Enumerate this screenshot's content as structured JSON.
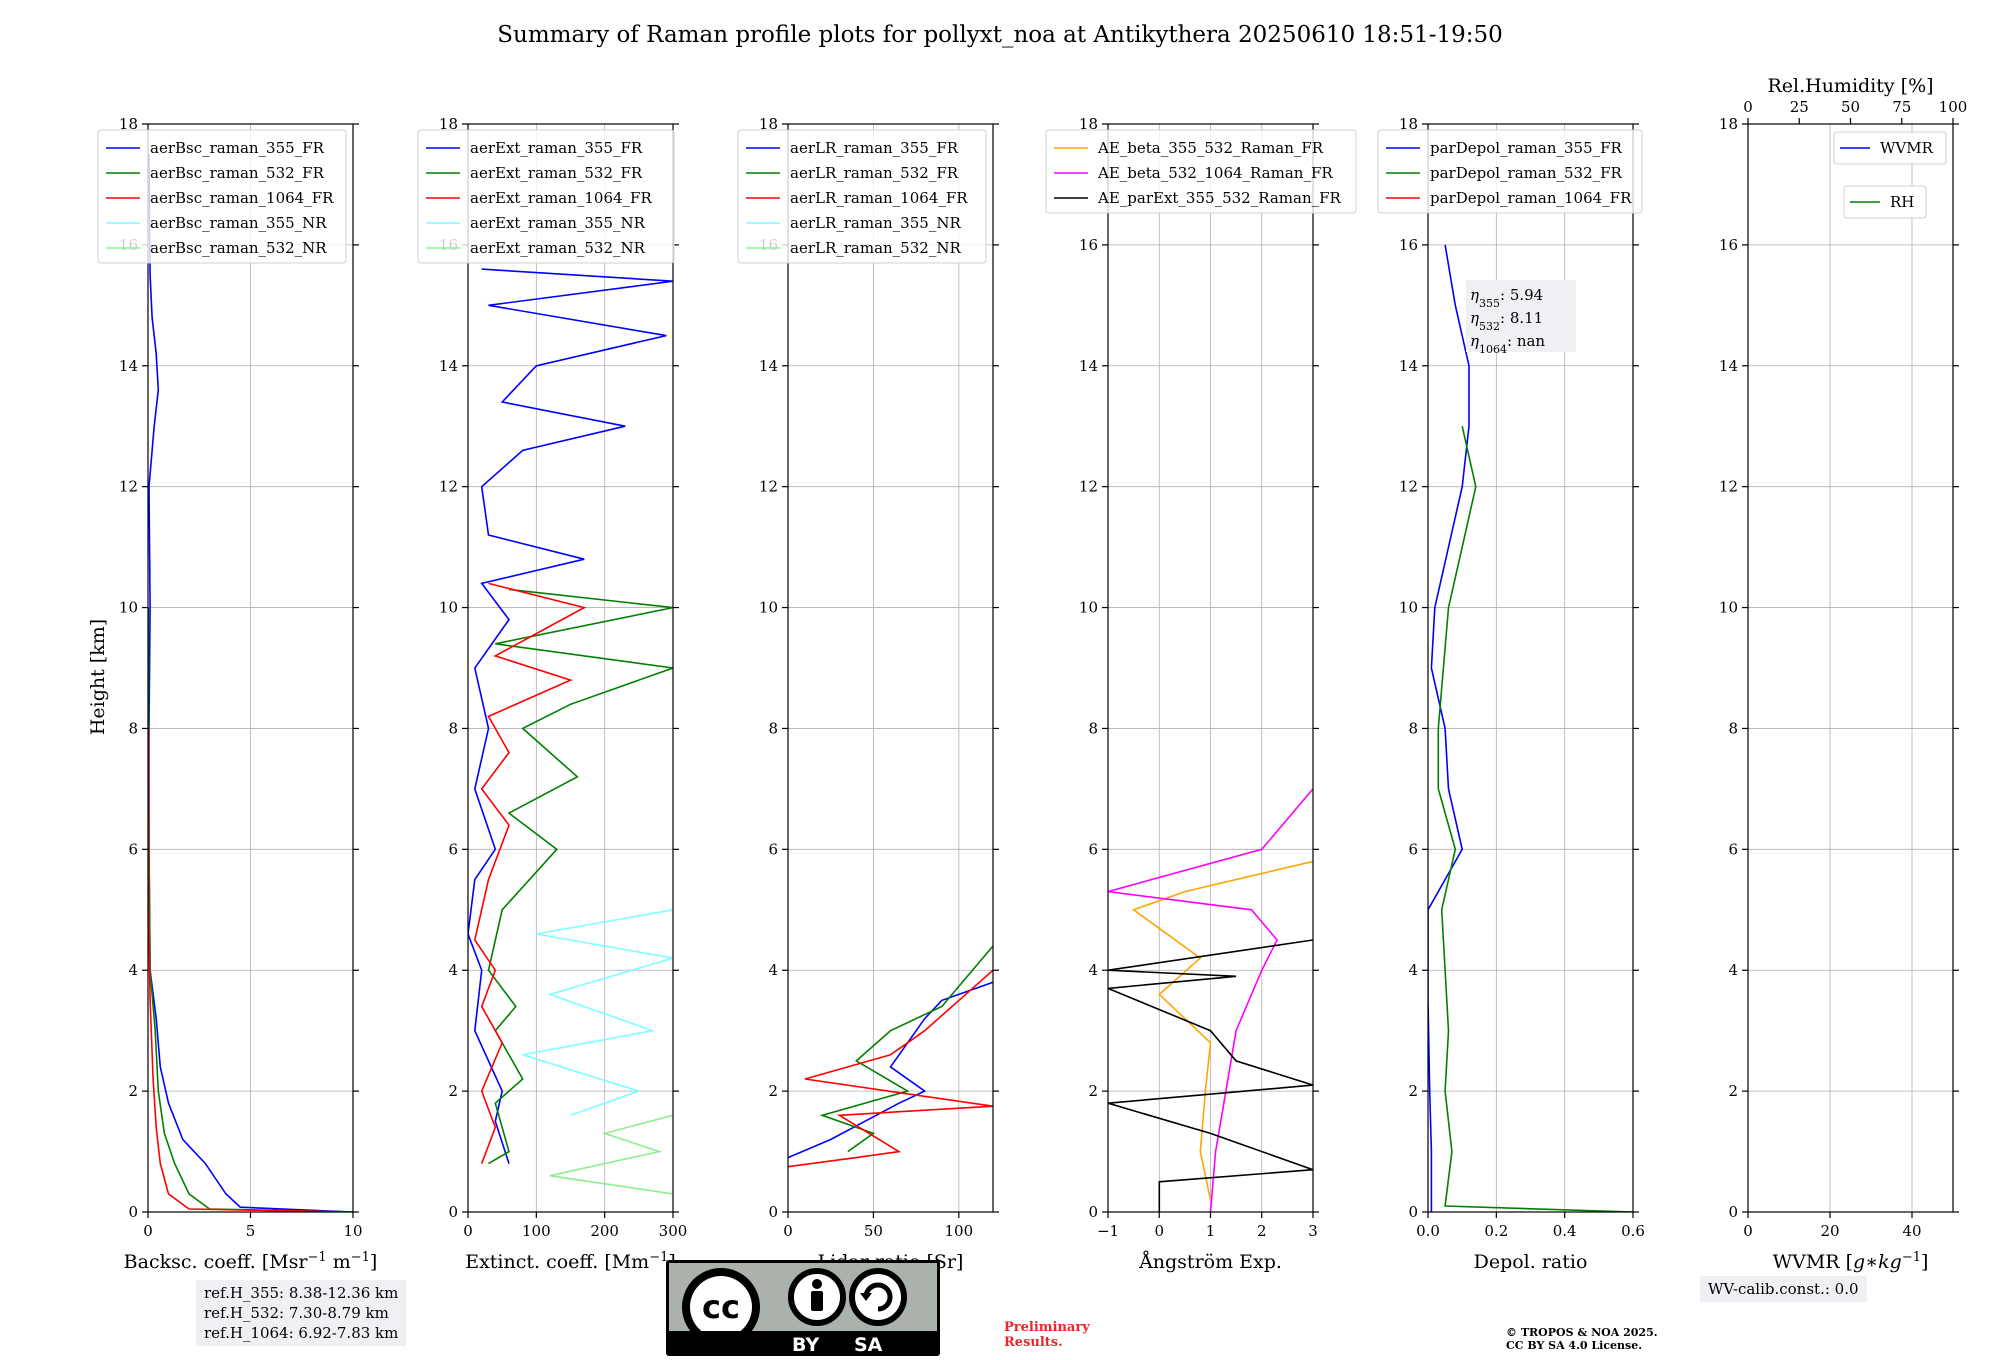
{
  "title": "Summary of Raman profile plots for pollyxt_noa at Antikythera 20250610 18:51-19:50",
  "ref_heights": [
    "ref.H_355: 8.38-12.36 km",
    "ref.H_532: 7.30-8.79 km",
    "ref.H_1064: 6.92-7.83 km"
  ],
  "wv_calib": "WV-calib.const.: 0.0",
  "preliminary": [
    "Preliminary",
    "Results."
  ],
  "copyright": [
    "© TROPOS & NOA 2025.",
    "CC BY SA 4.0 License."
  ],
  "license_badge": {
    "left": "BY",
    "right": "SA"
  },
  "colors": {
    "blue": "#0000ff",
    "green": "#008000",
    "red": "#ff0000",
    "cyan": "#7fffff",
    "lightgreen": "#90ee90",
    "orange": "#ffa500",
    "magenta": "#ff00ff",
    "black": "#000000"
  },
  "chart_data": [
    {
      "type": "line",
      "xlabel": "Backsc. coeff. [Msr$^{-1}$ m$^{-1}$]",
      "xlabel_text": [
        "Backsc. coeff. [Msr",
        "−1",
        " m",
        "−1",
        "]"
      ],
      "ylabel": "Height [km]",
      "xlim": [
        0,
        10
      ],
      "ylim": [
        0,
        18
      ],
      "xticks": [
        0,
        5,
        10
      ],
      "yticks": [
        0,
        2,
        4,
        6,
        8,
        10,
        12,
        14,
        16,
        18
      ],
      "grid": true,
      "legend_placement": "top-left",
      "series": [
        {
          "name": "aerBsc_raman_355_FR",
          "color": "blue",
          "points": [
            [
              10,
              0
            ],
            [
              4.5,
              0.08
            ],
            [
              3.8,
              0.3
            ],
            [
              2.8,
              0.8
            ],
            [
              1.7,
              1.2
            ],
            [
              1,
              1.8
            ],
            [
              0.6,
              2.4
            ],
            [
              0.4,
              3.2
            ],
            [
              0.1,
              4
            ],
            [
              0.05,
              6
            ],
            [
              0.05,
              8
            ],
            [
              0.1,
              10
            ],
            [
              0.05,
              12
            ],
            [
              0.3,
              13
            ],
            [
              0.5,
              13.6
            ],
            [
              0.4,
              14.2
            ],
            [
              0.2,
              14.8
            ],
            [
              0.1,
              15.5
            ],
            [
              0.05,
              17.5
            ]
          ]
        },
        {
          "name": "aerBsc_raman_532_FR",
          "color": "green",
          "points": [
            [
              10,
              0
            ],
            [
              3,
              0.05
            ],
            [
              2,
              0.3
            ],
            [
              1.3,
              0.8
            ],
            [
              0.8,
              1.3
            ],
            [
              0.5,
              2
            ],
            [
              0.35,
              3
            ],
            [
              0.1,
              4
            ],
            [
              0.05,
              6
            ],
            [
              0.03,
              8
            ],
            [
              0.02,
              10
            ]
          ]
        },
        {
          "name": "aerBsc_raman_1064_FR",
          "color": "red",
          "points": [
            [
              10,
              0
            ],
            [
              2,
              0.05
            ],
            [
              1,
              0.3
            ],
            [
              0.6,
              0.8
            ],
            [
              0.4,
              1.4
            ],
            [
              0.25,
              2.2
            ],
            [
              0.1,
              3.5
            ],
            [
              0.03,
              5
            ],
            [
              0.02,
              8
            ]
          ]
        },
        {
          "name": "aerBsc_raman_355_NR",
          "color": "cyan",
          "points": []
        },
        {
          "name": "aerBsc_raman_532_NR",
          "color": "lightgreen",
          "points": []
        }
      ]
    },
    {
      "type": "line",
      "xlabel": "Extinct. coeff. [Mm$^{-1}$]",
      "xlabel_text": [
        "Extinct. coeff. [Mm",
        "−1",
        "]"
      ],
      "xlim": [
        0,
        300
      ],
      "ylim": [
        0,
        18
      ],
      "xticks": [
        0,
        100,
        200,
        300
      ],
      "yticks": [
        0,
        2,
        4,
        6,
        8,
        10,
        12,
        14,
        16,
        18
      ],
      "grid": true,
      "legend_placement": "top-left",
      "series": [
        {
          "name": "aerExt_raman_355_FR",
          "color": "blue",
          "points": [
            [
              60,
              0.8
            ],
            [
              40,
              1.5
            ],
            [
              50,
              2
            ],
            [
              10,
              3
            ],
            [
              20,
              4
            ],
            [
              0,
              4.6
            ],
            [
              10,
              5.5
            ],
            [
              40,
              6
            ],
            [
              10,
              7
            ],
            [
              30,
              8
            ],
            [
              10,
              9
            ],
            [
              60,
              9.8
            ],
            [
              20,
              10.4
            ],
            [
              170,
              10.8
            ],
            [
              30,
              11.2
            ],
            [
              20,
              12
            ],
            [
              80,
              12.6
            ],
            [
              230,
              13
            ],
            [
              50,
              13.4
            ],
            [
              100,
              14
            ],
            [
              290,
              14.5
            ],
            [
              30,
              15
            ],
            [
              300,
              15.4
            ],
            [
              20,
              15.6
            ]
          ]
        },
        {
          "name": "aerExt_raman_532_FR",
          "color": "green",
          "points": [
            [
              30,
              0.8
            ],
            [
              60,
              1
            ],
            [
              40,
              1.8
            ],
            [
              80,
              2.2
            ],
            [
              40,
              3
            ],
            [
              70,
              3.4
            ],
            [
              30,
              4
            ],
            [
              50,
              5
            ],
            [
              130,
              6
            ],
            [
              60,
              6.6
            ],
            [
              160,
              7.2
            ],
            [
              80,
              8
            ],
            [
              150,
              8.4
            ],
            [
              300,
              9
            ],
            [
              40,
              9.4
            ],
            [
              300,
              10
            ],
            [
              60,
              10.3
            ]
          ]
        },
        {
          "name": "aerExt_raman_1064_FR",
          "color": "red",
          "points": [
            [
              20,
              0.8
            ],
            [
              40,
              1.4
            ],
            [
              20,
              2
            ],
            [
              50,
              2.8
            ],
            [
              20,
              3.4
            ],
            [
              40,
              4
            ],
            [
              10,
              4.5
            ],
            [
              30,
              5.5
            ],
            [
              60,
              6.4
            ],
            [
              20,
              7
            ],
            [
              60,
              7.6
            ],
            [
              30,
              8.2
            ],
            [
              150,
              8.8
            ],
            [
              40,
              9.2
            ],
            [
              170,
              10
            ],
            [
              30,
              10.4
            ]
          ]
        },
        {
          "name": "aerExt_raman_355_NR",
          "color": "cyan",
          "points": [
            [
              150,
              1.6
            ],
            [
              250,
              2
            ],
            [
              80,
              2.6
            ],
            [
              270,
              3
            ],
            [
              120,
              3.6
            ],
            [
              300,
              4.2
            ],
            [
              100,
              4.6
            ],
            [
              300,
              5
            ]
          ]
        },
        {
          "name": "aerExt_raman_532_NR",
          "color": "lightgreen",
          "points": [
            [
              300,
              0.3
            ],
            [
              120,
              0.6
            ],
            [
              280,
              1
            ],
            [
              200,
              1.3
            ],
            [
              300,
              1.6
            ]
          ]
        }
      ]
    },
    {
      "type": "line",
      "xlabel": "Lidar ratio [Sr]",
      "xlim": [
        0,
        120
      ],
      "ylim": [
        0,
        18
      ],
      "xticks": [
        0,
        50,
        100
      ],
      "yticks": [
        0,
        2,
        4,
        6,
        8,
        10,
        12,
        14,
        16,
        18
      ],
      "grid": true,
      "legend_placement": "top-left",
      "series": [
        {
          "name": "aerLR_raman_355_FR",
          "color": "blue",
          "points": [
            [
              0,
              0.9
            ],
            [
              25,
              1.2
            ],
            [
              45,
              1.5
            ],
            [
              65,
              1.8
            ],
            [
              80,
              2
            ],
            [
              60,
              2.4
            ],
            [
              70,
              2.8
            ],
            [
              80,
              3.2
            ],
            [
              90,
              3.5
            ],
            [
              120,
              3.8
            ]
          ]
        },
        {
          "name": "aerLR_raman_532_FR",
          "color": "green",
          "points": [
            [
              35,
              1
            ],
            [
              50,
              1.3
            ],
            [
              20,
              1.6
            ],
            [
              70,
              2
            ],
            [
              40,
              2.5
            ],
            [
              60,
              3
            ],
            [
              90,
              3.4
            ],
            [
              120,
              4.4
            ]
          ]
        },
        {
          "name": "aerLR_raman_1064_FR",
          "color": "red",
          "points": [
            [
              0,
              0.75
            ],
            [
              40,
              0.9
            ],
            [
              65,
              1
            ],
            [
              30,
              1.6
            ],
            [
              120,
              1.75
            ],
            [
              10,
              2.2
            ],
            [
              60,
              2.6
            ],
            [
              80,
              3
            ],
            [
              120,
              4
            ]
          ]
        },
        {
          "name": "aerLR_raman_355_NR",
          "color": "cyan",
          "points": []
        },
        {
          "name": "aerLR_raman_532_NR",
          "color": "lightgreen",
          "points": []
        }
      ]
    },
    {
      "type": "line",
      "xlabel": "Ångström Exp.",
      "xlim": [
        -1,
        3
      ],
      "ylim": [
        0,
        18
      ],
      "xticks": [
        -1,
        0,
        1,
        2,
        3
      ],
      "yticks": [
        0,
        2,
        4,
        6,
        8,
        10,
        12,
        14,
        16,
        18
      ],
      "grid": true,
      "legend_placement": "top-left",
      "series": [
        {
          "name": "AE_beta_355_532_Raman_FR",
          "color": "orange",
          "points": [
            [
              1,
              0.2
            ],
            [
              0.8,
              1
            ],
            [
              0.9,
              2
            ],
            [
              1,
              2.8
            ],
            [
              0.5,
              3.2
            ],
            [
              0,
              3.6
            ],
            [
              0.8,
              4.2
            ],
            [
              -0.5,
              5
            ],
            [
              0.5,
              5.3
            ],
            [
              3,
              5.8
            ]
          ]
        },
        {
          "name": "AE_beta_532_1064_Raman_FR",
          "color": "magenta",
          "points": [
            [
              1,
              0
            ],
            [
              1.1,
              1
            ],
            [
              1.3,
              2
            ],
            [
              1.5,
              3
            ],
            [
              2,
              4
            ],
            [
              2.3,
              4.5
            ],
            [
              1.8,
              5
            ],
            [
              -1,
              5.3
            ],
            [
              2,
              6
            ],
            [
              3,
              7
            ]
          ]
        },
        {
          "name": "AE_parExt_355_532_Raman_FR",
          "color": "black",
          "points": [
            [
              0,
              0
            ],
            [
              0,
              0.5
            ],
            [
              3,
              0.7
            ],
            [
              1,
              1.3
            ],
            [
              -1,
              1.8
            ],
            [
              3,
              2.1
            ],
            [
              1.5,
              2.5
            ],
            [
              1,
              3
            ],
            [
              -1,
              3.7
            ],
            [
              1.5,
              3.9
            ],
            [
              -1,
              4
            ],
            [
              3,
              4.5
            ]
          ]
        }
      ]
    },
    {
      "type": "line",
      "xlabel": "Depol. ratio",
      "xlim": [
        0,
        0.6
      ],
      "ylim": [
        0,
        18
      ],
      "xticks": [
        0,
        0.2,
        0.4,
        0.6
      ],
      "yticks": [
        0,
        2,
        4,
        6,
        8,
        10,
        12,
        14,
        16,
        18
      ],
      "xtick_labels": [
        "0.0",
        "0.2",
        "0.4",
        "0.6"
      ],
      "grid": true,
      "legend_placement": "top-left",
      "annotations": [
        {
          "symbol": "η",
          "sub": "355",
          "text": ": 5.94"
        },
        {
          "symbol": "η",
          "sub": "532",
          "text": ": 8.11"
        },
        {
          "symbol": "η",
          "sub": "1064",
          "text": ": nan"
        }
      ],
      "series": [
        {
          "name": "parDepol_raman_355_FR",
          "color": "blue",
          "points": [
            [
              0.01,
              0
            ],
            [
              0.01,
              1
            ],
            [
              0.005,
              2
            ],
            [
              0,
              3.5
            ],
            [
              0,
              5
            ],
            [
              0.1,
              6
            ],
            [
              0.06,
              7
            ],
            [
              0.05,
              8
            ],
            [
              0.01,
              9
            ],
            [
              0.02,
              10
            ],
            [
              0.1,
              12
            ],
            [
              0.12,
              13
            ],
            [
              0.12,
              14
            ],
            [
              0.08,
              15
            ],
            [
              0.05,
              16
            ]
          ]
        },
        {
          "name": "parDepol_raman_532_FR",
          "color": "green",
          "points": [
            [
              0.6,
              0
            ],
            [
              0.05,
              0.1
            ],
            [
              0.07,
              1
            ],
            [
              0.05,
              2
            ],
            [
              0.06,
              3
            ],
            [
              0.05,
              4
            ],
            [
              0.04,
              5
            ],
            [
              0.08,
              6
            ],
            [
              0.03,
              7
            ],
            [
              0.03,
              8
            ],
            [
              0.06,
              10
            ],
            [
              0.1,
              11
            ],
            [
              0.14,
              12
            ],
            [
              0.1,
              13
            ]
          ]
        },
        {
          "name": "parDepol_raman_1064_FR",
          "color": "red",
          "points": []
        }
      ]
    },
    {
      "type": "line",
      "xlabel": "WVMR [$g*kg^{-1}$]",
      "xlabel_text": [
        "WVMR [",
        "g",
        "∗",
        "kg",
        "−1",
        "]"
      ],
      "xlim": [
        0,
        50
      ],
      "ylim": [
        0,
        18
      ],
      "xticks": [
        0,
        20,
        40
      ],
      "yticks": [
        0,
        2,
        4,
        6,
        8,
        10,
        12,
        14,
        16,
        18
      ],
      "grid": true,
      "legend_placement": "top-right",
      "top_axis": {
        "label": "Rel.Humidity [%]",
        "xlim": [
          0,
          100
        ],
        "xticks": [
          0,
          25,
          50,
          75,
          100
        ]
      },
      "series": [
        {
          "name": "WVMR",
          "color": "blue",
          "points": []
        },
        {
          "name": "RH",
          "color": "green",
          "points": []
        }
      ]
    }
  ]
}
